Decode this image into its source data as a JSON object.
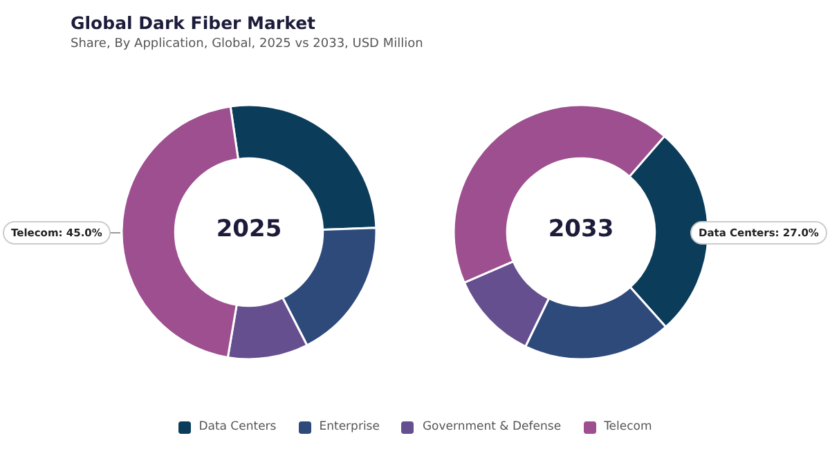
{
  "chart_data": [
    {
      "type": "donut",
      "title": "Global Dark Fiber Market",
      "subtitle": "Share, By Application, Global, 2025 vs 2033, USD Million",
      "annotations": [
        "2025",
        "Telecom: 45.0%"
      ],
      "categories": [
        "Data Centers",
        "Enterprise",
        "Government & Defense",
        "Telecom"
      ],
      "values": [
        26.8,
        18.0,
        10.2,
        45.0
      ],
      "colors": [
        "#0b3d5b",
        "#2e4a7b",
        "#654f8f",
        "#9d4f8f"
      ],
      "legend": "bottom"
    },
    {
      "type": "donut",
      "annotations": [
        "2033",
        "Data Centers: 27.0%"
      ],
      "categories": [
        null,
        null,
        null,
        null
      ],
      "values": [
        27.0,
        18.8,
        11.3,
        42.9
      ],
      "colors": [
        "#0b3d5b",
        "#2e4a7b",
        "#654f8f",
        "#9d4f8f"
      ]
    }
  ]
}
